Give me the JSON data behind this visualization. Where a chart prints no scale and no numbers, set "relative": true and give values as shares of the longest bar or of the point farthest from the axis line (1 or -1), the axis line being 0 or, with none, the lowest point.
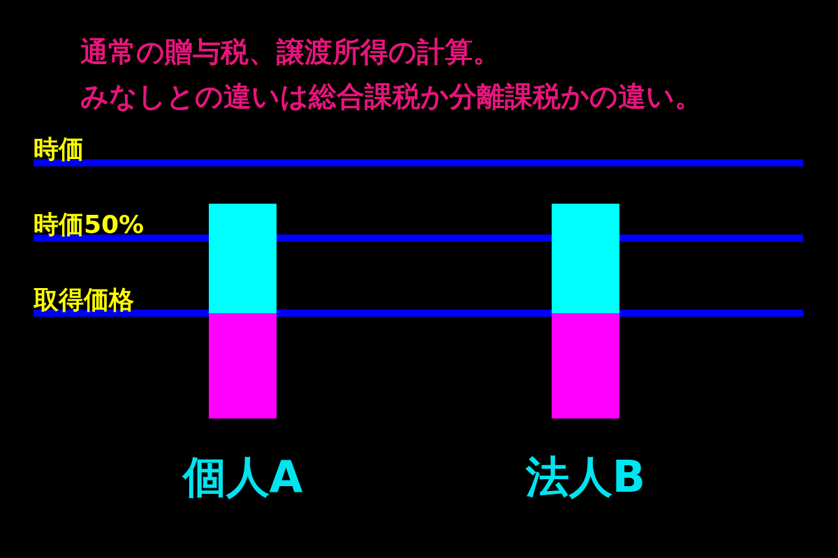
{
  "chart_data": {
    "type": "bar",
    "title": "通常の贈与税、譲渡所得の計算。",
    "subtitle": "みなしとの違いは総合課税か分離課税かの違い。",
    "categories": [
      "個人A",
      "法人B"
    ],
    "stacked": true,
    "relative": true,
    "series": [
      {
        "color": "#ff00ff",
        "values": [
          0.49,
          0.49
        ]
      },
      {
        "color": "#00ffff",
        "values": [
          0.51,
          0.51
        ]
      }
    ],
    "ref_lines": [
      {
        "axis": "y",
        "value": 1.19,
        "label": "時価",
        "color": "#0000ff"
      },
      {
        "axis": "y",
        "value": 0.84,
        "label": "時価50%",
        "color": "#0000ff"
      },
      {
        "axis": "y",
        "value": 0.49,
        "label": "取得価格",
        "color": "#0000ff"
      }
    ]
  }
}
